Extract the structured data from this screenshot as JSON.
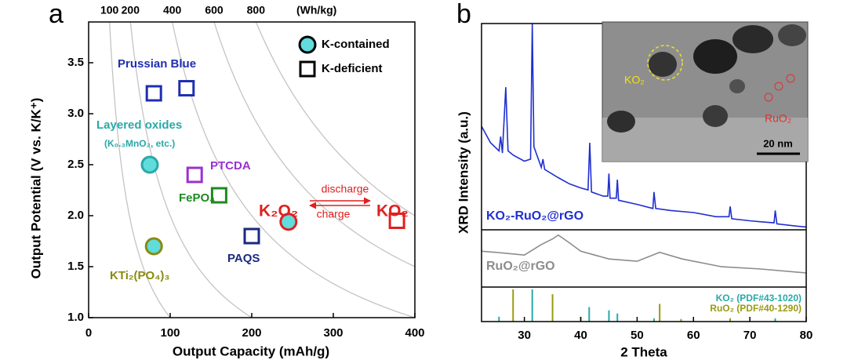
{
  "chart_data": [
    {
      "type": "scatter",
      "panel_label": "a",
      "xlabel": "Output Capacity (mAh/g)",
      "ylabel": "Output Potential (V vs. K/K⁺)",
      "xlim": [
        0,
        400
      ],
      "xticks": [
        0,
        100,
        200,
        300,
        400
      ],
      "ylim": [
        1.0,
        3.9
      ],
      "yticks": [
        {
          "value": 1.0,
          "label": "1.0"
        },
        1.5,
        {
          "value": 2.0,
          "label": "2.0"
        },
        2.5,
        {
          "value": 3.0,
          "label": "3.0"
        },
        3.5
      ],
      "x2ticks": [
        100,
        200,
        400,
        600,
        800
      ],
      "x2label": "(Wh/kg)",
      "marker_fill": "#5fdcdc",
      "legend": [
        {
          "name": "K-contained",
          "marker": "circle"
        },
        {
          "name": "K-deficient",
          "marker": "square"
        }
      ],
      "series": [
        {
          "name": "Prussian Blue",
          "color": "#1f2fb0",
          "marker": "square",
          "x": [
            80,
            120
          ],
          "values": [
            3.2,
            3.25
          ]
        },
        {
          "name": "Layered oxides",
          "sublabel": "(K₀.₃MnO₂, etc.)",
          "color": "#2aa8a8",
          "marker": "circle",
          "x": [
            75
          ],
          "values": [
            2.5
          ]
        },
        {
          "name": "PTCDA",
          "color": "#9b30d0",
          "marker": "square",
          "x": [
            130
          ],
          "values": [
            2.4
          ]
        },
        {
          "name": "FePO₄",
          "color": "#1e8a1e",
          "marker": "square",
          "x": [
            160
          ],
          "values": [
            2.2
          ]
        },
        {
          "name": "PAQS",
          "color": "#1a2a80",
          "marker": "square",
          "x": [
            200
          ],
          "values": [
            1.8
          ]
        },
        {
          "name": "KTi₂(PO₄)₃",
          "color": "#8a8a10",
          "marker": "circle",
          "x": [
            80
          ],
          "values": [
            1.7
          ]
        },
        {
          "name": "K₂O₂",
          "color": "#e02020",
          "marker": "circle",
          "x": [
            245
          ],
          "values": [
            1.94
          ]
        },
        {
          "name": "KO₂",
          "color": "#e02020",
          "marker": "square",
          "x": [
            378
          ],
          "values": [
            1.95
          ]
        }
      ],
      "annotations": [
        "discharge",
        "charge"
      ]
    },
    {
      "type": "line",
      "panel_label": "b",
      "xlabel": "2 Theta",
      "ylabel": "XRD Intensity (a.u.)",
      "xlim": [
        22.4,
        80
      ],
      "xticks": [
        30,
        40,
        50,
        60,
        70,
        80
      ],
      "ylim": [
        0,
        100
      ],
      "series": [
        {
          "name": "KO₂-RuO₂@rGO",
          "color": "#1f2fd0",
          "x": [
            22.4,
            24,
            25.5,
            25.8,
            26.1,
            26.7,
            27.1,
            28,
            30,
            31.1,
            31.4,
            31.7,
            33,
            33.3,
            33.6,
            36,
            38,
            40,
            41.3,
            41.6,
            41.9,
            44,
            44.8,
            45,
            45.2,
            46.3,
            46.5,
            46.7,
            50,
            52.8,
            53,
            53.3,
            56,
            60,
            64,
            66.3,
            66.5,
            66.8,
            70,
            72,
            74.3,
            74.5,
            74.8,
            78,
            80
          ],
          "values": [
            50,
            42,
            38,
            45,
            37,
            69,
            38,
            36,
            33,
            34,
            100,
            40,
            30,
            34,
            29,
            25,
            22,
            20,
            19,
            42,
            18,
            16,
            16,
            27,
            15,
            15,
            24,
            14,
            12,
            10,
            18,
            10,
            9,
            8,
            6,
            6,
            11,
            5,
            4,
            3.5,
            3,
            9,
            2.5,
            1.5,
            1
          ]
        },
        {
          "name": "RuO₂@rGO",
          "color": "#8c8c8c",
          "x": [
            22.4,
            26,
            30,
            33,
            35,
            36,
            38,
            40,
            45,
            50,
            54,
            58,
            65,
            72,
            80
          ],
          "values": [
            63,
            60,
            56,
            75,
            85,
            92,
            78,
            63,
            49,
            45,
            61,
            49,
            35,
            31,
            24
          ]
        }
      ],
      "references": [
        {
          "name": "KO₂ (PDF#43-1020)",
          "color": "#2aa8a8",
          "x": [
            25.5,
            31.4,
            41.5,
            45,
            46.5,
            53,
            66.5,
            74.5
          ],
          "values": [
            15,
            100,
            45,
            35,
            25,
            10,
            10,
            10
          ]
        },
        {
          "name": "RuO₂ (PDF#40-1290)",
          "color": "#9a9a10",
          "x": [
            28,
            35,
            40,
            54,
            57.8,
            66.5
          ],
          "values": [
            100,
            85,
            15,
            55,
            8,
            10
          ]
        }
      ],
      "inset": {
        "labels": [
          "KO₂",
          "RuO₂"
        ],
        "scale_bar": "20 nm"
      }
    }
  ]
}
